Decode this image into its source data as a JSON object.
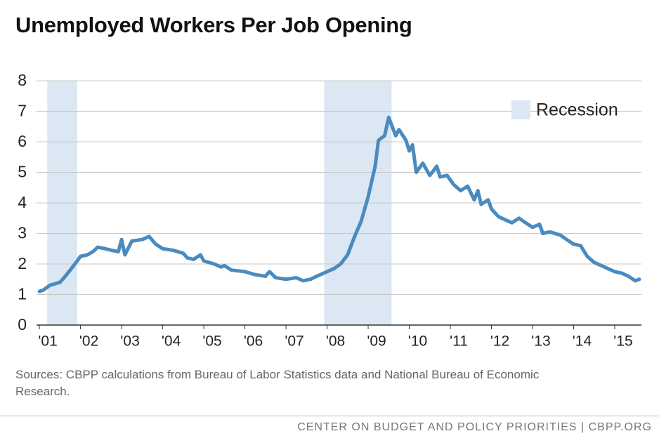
{
  "chart_data": {
    "type": "line",
    "title": "Unemployed Workers Per Job Opening",
    "source": "Sources: CBPP calculations from Bureau of Labor Statistics data and National Bureau of Economic Research.",
    "footer": "CENTER ON BUDGET AND POLICY PRIORITIES | CBPP.ORG",
    "x": [
      2001.0,
      2001.1,
      2001.25,
      2001.5,
      2001.6,
      2001.75,
      2001.92,
      2002.0,
      2002.17,
      2002.3,
      2002.42,
      2002.6,
      2002.75,
      2002.92,
      2003.0,
      2003.08,
      2003.25,
      2003.5,
      2003.67,
      2003.83,
      2004.0,
      2004.25,
      2004.5,
      2004.6,
      2004.75,
      2004.92,
      2005.0,
      2005.25,
      2005.42,
      2005.5,
      2005.67,
      2006.0,
      2006.25,
      2006.5,
      2006.6,
      2006.75,
      2007.0,
      2007.25,
      2007.42,
      2007.6,
      2007.75,
      2007.92,
      2008.0,
      2008.17,
      2008.33,
      2008.5,
      2008.67,
      2008.83,
      2009.0,
      2009.17,
      2009.25,
      2009.4,
      2009.5,
      2009.67,
      2009.75,
      2009.92,
      2010.0,
      2010.08,
      2010.17,
      2010.33,
      2010.5,
      2010.67,
      2010.75,
      2010.92,
      2011.08,
      2011.25,
      2011.42,
      2011.58,
      2011.67,
      2011.75,
      2011.92,
      2012.0,
      2012.17,
      2012.33,
      2012.5,
      2012.67,
      2012.83,
      2013.0,
      2013.17,
      2013.25,
      2013.42,
      2013.67,
      2013.83,
      2014.0,
      2014.17,
      2014.33,
      2014.5,
      2014.67,
      2014.83,
      2015.0,
      2015.17,
      2015.33,
      2015.5,
      2015.6
    ],
    "series": [
      {
        "name": "Unemployed workers per job opening",
        "color": "#4a8bbf",
        "values": [
          1.1,
          1.15,
          1.3,
          1.4,
          1.55,
          1.8,
          2.1,
          2.25,
          2.3,
          2.4,
          2.55,
          2.5,
          2.45,
          2.4,
          2.8,
          2.3,
          2.75,
          2.8,
          2.9,
          2.65,
          2.5,
          2.45,
          2.35,
          2.2,
          2.15,
          2.3,
          2.1,
          2.0,
          1.9,
          1.95,
          1.8,
          1.75,
          1.65,
          1.6,
          1.75,
          1.55,
          1.5,
          1.55,
          1.45,
          1.5,
          1.6,
          1.7,
          1.75,
          1.85,
          2.0,
          2.3,
          2.9,
          3.4,
          4.2,
          5.2,
          6.05,
          6.2,
          6.8,
          6.2,
          6.4,
          6.05,
          5.7,
          5.9,
          5.0,
          5.3,
          4.9,
          5.2,
          4.85,
          4.9,
          4.6,
          4.4,
          4.55,
          4.1,
          4.4,
          3.95,
          4.1,
          3.8,
          3.55,
          3.45,
          3.35,
          3.5,
          3.35,
          3.2,
          3.3,
          3.0,
          3.05,
          2.95,
          2.8,
          2.65,
          2.6,
          2.25,
          2.05,
          1.95,
          1.85,
          1.75,
          1.7,
          1.6,
          1.45,
          1.5
        ]
      }
    ],
    "recession_label": "Recession",
    "recession_color": "#dbe7f2",
    "recessions": [
      {
        "start": 2001.19,
        "end": 2001.92
      },
      {
        "start": 2007.93,
        "end": 2009.57
      }
    ],
    "xlim": [
      2000.93,
      2015.65
    ],
    "xticks": [
      {
        "value": 2001,
        "label": "'01"
      },
      {
        "value": 2002,
        "label": "'02"
      },
      {
        "value": 2003,
        "label": "'03"
      },
      {
        "value": 2004,
        "label": "'04"
      },
      {
        "value": 2005,
        "label": "'05"
      },
      {
        "value": 2006,
        "label": "'06"
      },
      {
        "value": 2007,
        "label": "'07"
      },
      {
        "value": 2008,
        "label": "'08"
      },
      {
        "value": 2009,
        "label": "'09"
      },
      {
        "value": 2010,
        "label": "'10"
      },
      {
        "value": 2011,
        "label": "'11"
      },
      {
        "value": 2012,
        "label": "'12"
      },
      {
        "value": 2013,
        "label": "'13"
      },
      {
        "value": 2014,
        "label": "'14"
      },
      {
        "value": 2015,
        "label": "'15"
      }
    ],
    "ylim": [
      0,
      8
    ],
    "yticks": [
      0,
      1,
      2,
      3,
      4,
      5,
      6,
      7,
      8
    ],
    "grid": true
  }
}
